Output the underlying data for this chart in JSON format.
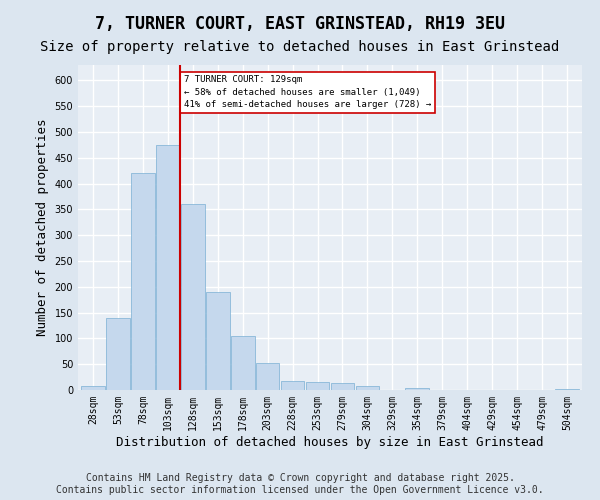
{
  "title": "7, TURNER COURT, EAST GRINSTEAD, RH19 3EU",
  "subtitle": "Size of property relative to detached houses in East Grinstead",
  "xlabel": "Distribution of detached houses by size in East Grinstead",
  "ylabel": "Number of detached properties",
  "bar_color": "#c5d8ed",
  "bar_edge_color": "#7aafd4",
  "background_color": "#e8eef5",
  "grid_color": "#ffffff",
  "bins": [
    "28sqm",
    "53sqm",
    "78sqm",
    "103sqm",
    "128sqm",
    "153sqm",
    "178sqm",
    "203sqm",
    "228sqm",
    "253sqm",
    "279sqm",
    "304sqm",
    "329sqm",
    "354sqm",
    "379sqm",
    "404sqm",
    "429sqm",
    "454sqm",
    "479sqm",
    "504sqm"
  ],
  "values": [
    8,
    140,
    420,
    475,
    360,
    190,
    105,
    52,
    17,
    16,
    13,
    8,
    0,
    4,
    0,
    0,
    0,
    0,
    0,
    1
  ],
  "property_bin_index": 4,
  "vline_color": "#cc0000",
  "annotation_text": "7 TURNER COURT: 129sqm\n← 58% of detached houses are smaller (1,049)\n41% of semi-detached houses are larger (728) →",
  "annotation_box_color": "#ffffff",
  "annotation_box_edge": "#cc0000",
  "ylim": [
    0,
    630
  ],
  "yticks": [
    0,
    50,
    100,
    150,
    200,
    250,
    300,
    350,
    400,
    450,
    500,
    550,
    600
  ],
  "footer_line1": "Contains HM Land Registry data © Crown copyright and database right 2025.",
  "footer_line2": "Contains public sector information licensed under the Open Government Licence v3.0.",
  "title_fontsize": 12,
  "subtitle_fontsize": 10,
  "tick_fontsize": 7,
  "ylabel_fontsize": 9,
  "xlabel_fontsize": 9,
  "footer_fontsize": 7,
  "fig_bg_color": "#dce6f0"
}
